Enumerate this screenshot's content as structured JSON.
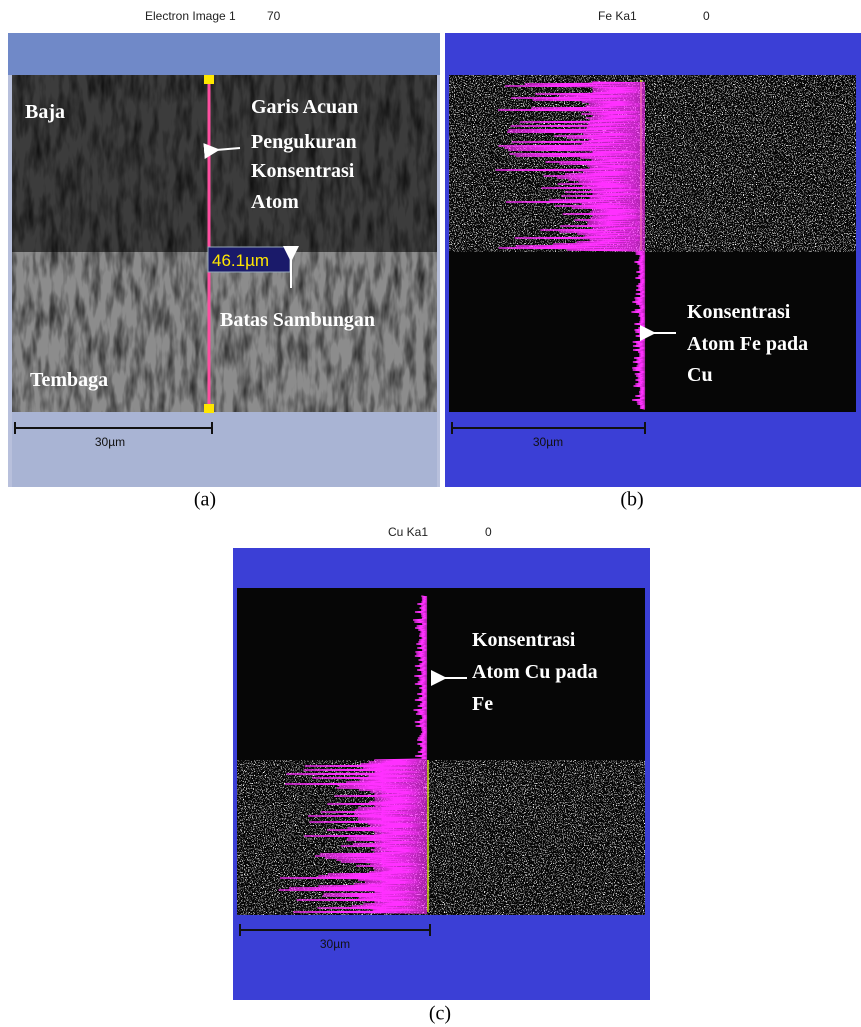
{
  "panel_a": {
    "header": "Electron Image 1",
    "header_value": "70",
    "scale_bar": "30µm",
    "steel_label": "Baja",
    "copper_label": "Tembaga",
    "reference_label": [
      "Garis Acuan",
      "Pengukuran",
      "Konsentrasi",
      "Atom"
    ],
    "length_label": "46.1µm",
    "boundary_label": "Batas Sambungan",
    "caption": "(a)"
  },
  "panel_b": {
    "header": "Fe Ka1",
    "header_value": "0",
    "scale_bar": "30µm",
    "annotation": [
      "Konsentrasi",
      "Atom Fe pada",
      "Cu"
    ],
    "caption": "(b)"
  },
  "panel_c": {
    "header": "Cu Ka1",
    "header_value": "0",
    "scale_bar": "30µm",
    "annotation": [
      "Konsentrasi",
      "Atom Cu pada",
      "Fe"
    ],
    "caption": "(c)"
  }
}
